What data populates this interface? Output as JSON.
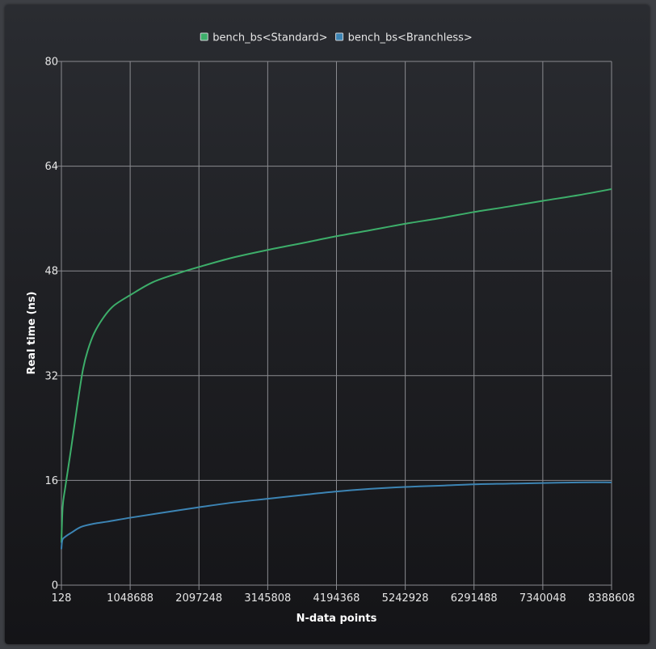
{
  "chart_data": {
    "type": "line",
    "xlabel": "N-data points",
    "ylabel": "Real time (ns)",
    "xlim": [
      128,
      8388608
    ],
    "ylim": [
      0,
      80
    ],
    "x_ticks": [
      "128",
      "1048688",
      "2097248",
      "3145808",
      "4194368",
      "5242928",
      "6291488",
      "7340048",
      "8388608"
    ],
    "y_ticks": [
      "0",
      "16",
      "32",
      "48",
      "64",
      "80"
    ],
    "grid": true,
    "legend_position": "top-center",
    "series": [
      {
        "name": "bench_bs<Standard>",
        "color": "#3dae6a",
        "x": [
          128,
          20000,
          60000,
          150000,
          250000,
          330000,
          400000,
          500000,
          650000,
          800000,
          1048688,
          1400000,
          1800000,
          2097248,
          2600000,
          3145808,
          3700000,
          4194368,
          4700000,
          5242928,
          5800000,
          6291488,
          6800000,
          7340048,
          7900000,
          8388608
        ],
        "y": [
          6.5,
          12.0,
          15.0,
          21.0,
          28.0,
          33.0,
          35.8,
          38.5,
          41.0,
          42.7,
          44.3,
          46.3,
          47.7,
          48.6,
          50.0,
          51.2,
          52.3,
          53.3,
          54.2,
          55.2,
          56.1,
          57.0,
          57.8,
          58.7,
          59.6,
          60.5
        ]
      },
      {
        "name": "bench_bs<Branchless>",
        "color": "#3c84b4",
        "x": [
          128,
          15000,
          60000,
          150000,
          300000,
          500000,
          700000,
          1048688,
          1500000,
          2097248,
          2600000,
          3145808,
          3700000,
          4194368,
          4700000,
          5242928,
          5800000,
          6291488,
          6800000,
          7340048,
          7900000,
          8388608
        ],
        "y": [
          5.5,
          6.9,
          7.4,
          8.0,
          8.9,
          9.4,
          9.7,
          10.3,
          11.0,
          11.9,
          12.6,
          13.2,
          13.8,
          14.3,
          14.7,
          15.0,
          15.2,
          15.4,
          15.5,
          15.6,
          15.7,
          15.7
        ]
      }
    ]
  }
}
